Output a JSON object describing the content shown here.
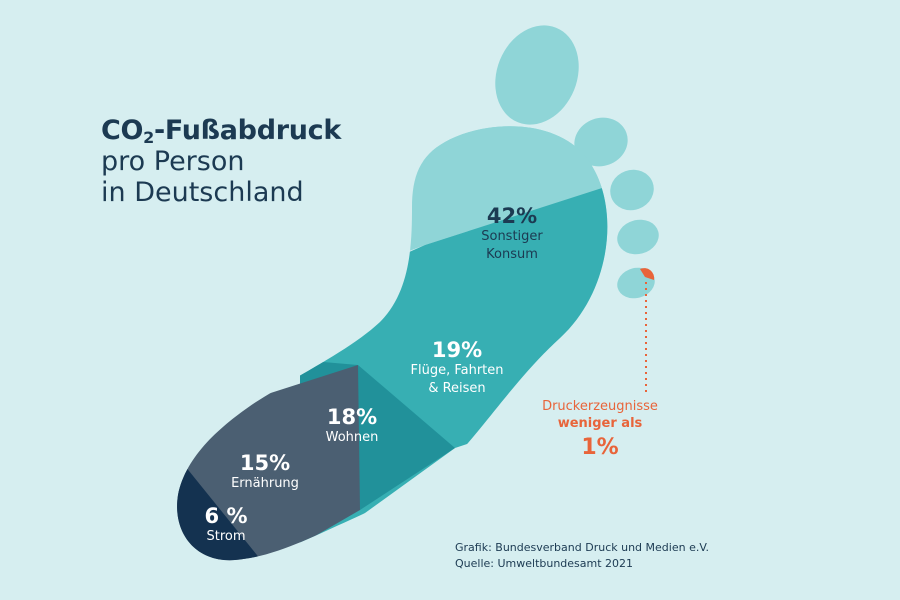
{
  "title": {
    "prefix": "CO",
    "subscript": "2",
    "suffix": "-Fußabdruck",
    "line2": "pro Person",
    "line3": "in Deutschland"
  },
  "segments": [
    {
      "value": "42%",
      "label": "Sonstiger",
      "label2": "Konsum",
      "color": "#8fd5d7"
    },
    {
      "value": "19%",
      "label": "Flüge, Fahrten",
      "label2": "& Reisen",
      "color": "#37afb3"
    },
    {
      "value": "18%",
      "label": "Wohnen",
      "label2": "",
      "color": "#21919a"
    },
    {
      "value": "15%",
      "label": "Ernährung",
      "label2": "",
      "color": "#4b5f72"
    },
    {
      "value": "6 %",
      "label": "Strom",
      "label2": "",
      "color": "#143250"
    }
  ],
  "note": {
    "line1": "Druckerzeugnisse",
    "line2": "weniger als",
    "value": "1%",
    "color": "#e8643a"
  },
  "source": {
    "line1": "Grafik: Bundesverband Druck und Medien e.V.",
    "line2": "Quelle: Umweltbundesamt 2021"
  }
}
